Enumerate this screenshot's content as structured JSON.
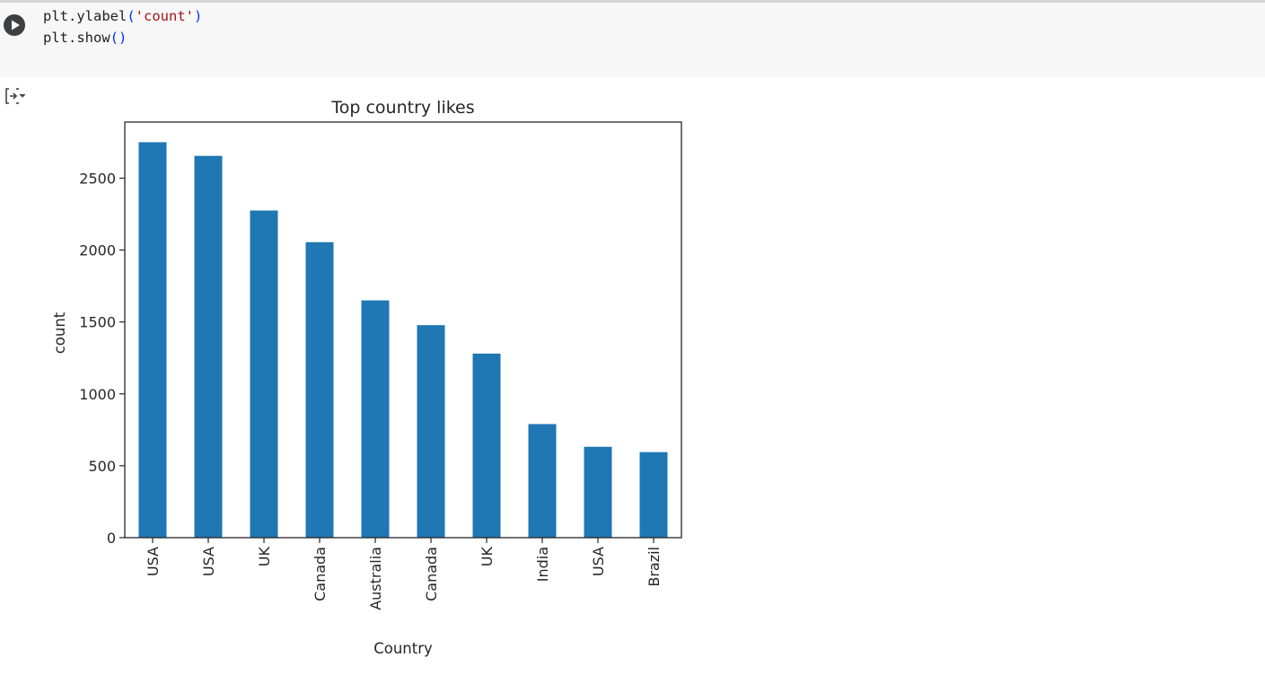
{
  "code_cell": {
    "lines": [
      {
        "fn": "plt.ylabel",
        "arg": "'count'"
      },
      {
        "fn": "plt.show",
        "arg": ""
      }
    ]
  },
  "icons": {
    "run": "play-circle-icon",
    "output_toggle": "output-collapse-icon"
  },
  "chart_data": {
    "type": "bar",
    "title": "Top country likes",
    "xlabel": "Country",
    "ylabel": "count",
    "categories": [
      "USA",
      "USA",
      "UK",
      "Canada",
      "Australia",
      "Canada",
      "UK",
      "India",
      "USA",
      "Brazil"
    ],
    "values": [
      2750,
      2655,
      2275,
      2055,
      1650,
      1478,
      1280,
      790,
      632,
      595
    ],
    "yticks": [
      0,
      500,
      1000,
      1500,
      2000,
      2500
    ],
    "ylim": [
      0,
      2890
    ],
    "bar_color": "#1f77b4",
    "grid": false,
    "legend": "none"
  }
}
